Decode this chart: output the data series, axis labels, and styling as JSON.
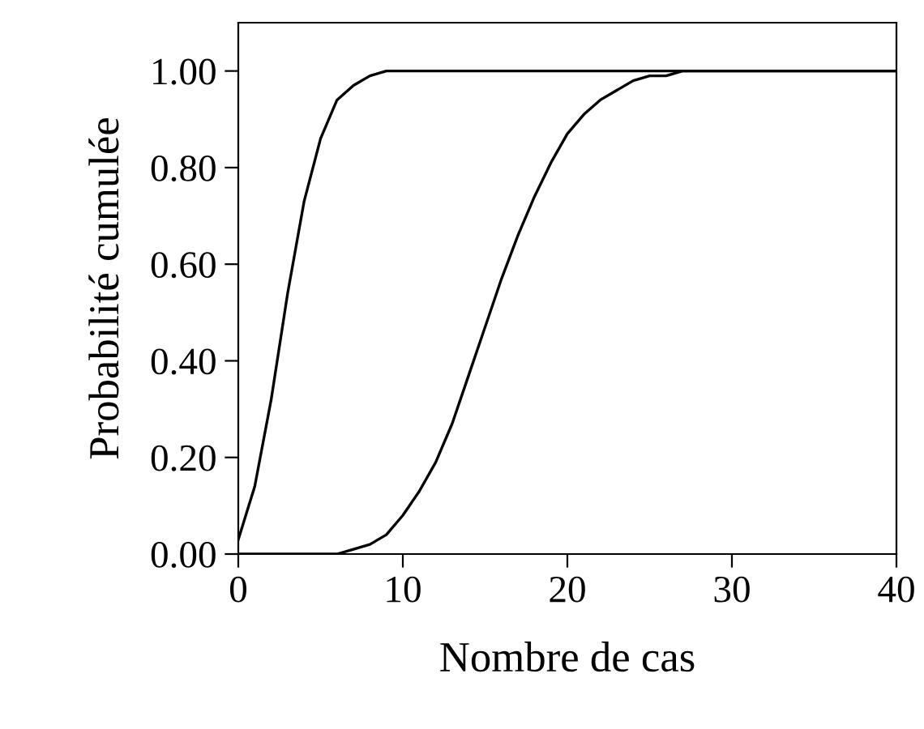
{
  "chart_data": {
    "type": "line",
    "xlabel": "Nombre de cas",
    "ylabel": "Probabilité cumulée",
    "series": [
      {
        "color": "#000000",
        "x": [
          0,
          1,
          2,
          3,
          4,
          5,
          6,
          7,
          8,
          9,
          10,
          11,
          12,
          40
        ],
        "values": [
          0.03,
          0.14,
          0.32,
          0.54,
          0.73,
          0.86,
          0.94,
          0.97,
          0.99,
          1.0,
          1.0,
          1.0,
          1.0,
          1.0
        ]
      },
      {
        "color": "#000000",
        "x": [
          0,
          4,
          5,
          6,
          7,
          8,
          9,
          10,
          11,
          12,
          13,
          14,
          15,
          16,
          17,
          18,
          19,
          20,
          21,
          22,
          23,
          24,
          25,
          26,
          27,
          28,
          30,
          40
        ],
        "values": [
          0.0,
          0.0,
          0.0,
          0.0,
          0.01,
          0.02,
          0.04,
          0.08,
          0.13,
          0.19,
          0.27,
          0.37,
          0.47,
          0.57,
          0.66,
          0.74,
          0.81,
          0.87,
          0.91,
          0.94,
          0.96,
          0.98,
          0.99,
          0.99,
          1.0,
          1.0,
          1.0,
          1.0
        ]
      }
    ],
    "xlim": [
      0,
      40
    ],
    "xticks": [
      0,
      10,
      20,
      30,
      40
    ],
    "ylim": [
      0,
      1.1
    ],
    "yticks": [
      {
        "value": 0,
        "label": "0.00"
      },
      {
        "value": 0.2,
        "label": "0.20"
      },
      {
        "value": 0.4,
        "label": "0.40"
      },
      {
        "value": 0.6,
        "label": "0.60"
      },
      {
        "value": 0.8,
        "label": "0.80"
      },
      {
        "value": 1.0,
        "label": "1.00"
      }
    ],
    "grid": false,
    "legend": false,
    "marker": "none",
    "line_style": "solid"
  }
}
